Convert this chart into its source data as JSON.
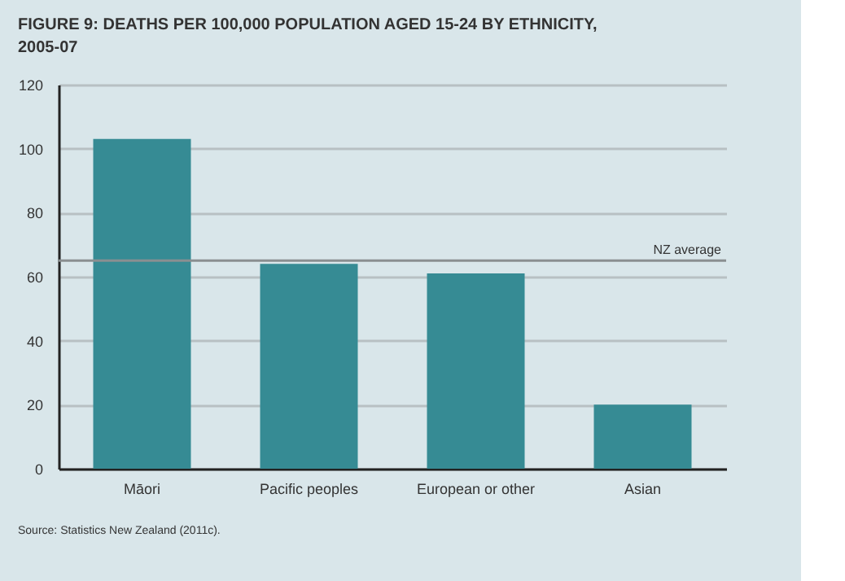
{
  "chart_data": {
    "type": "bar",
    "title": "FIGURE 9: DEATHS PER 100,000 POPULATION AGED 15-24 BY ETHNICITY, 2005-07",
    "categories": [
      "Māori",
      "Pacific peoples",
      "European or other",
      "Asian"
    ],
    "values": [
      103,
      64,
      61,
      20
    ],
    "color": "#368b94",
    "ylim": [
      0,
      120
    ],
    "yticks": [
      0,
      20,
      40,
      60,
      80,
      100,
      120
    ],
    "grid": "y",
    "ref_lines": [
      {
        "axis": "y",
        "value": 65,
        "label": "NZ average",
        "color": "#8a8f91"
      }
    ],
    "annotations": [
      "Source: Statistics New Zealand (2011c)."
    ]
  }
}
